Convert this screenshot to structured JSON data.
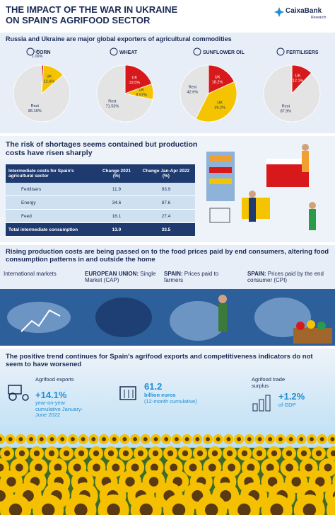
{
  "header": {
    "title": "THE IMPACT OF THE WAR IN UKRAINE",
    "title2": "ON SPAIN'S AGRIFOOD SECTOR",
    "brand": "CaixaBank",
    "brand_sub": "Research"
  },
  "exporters": {
    "heading": "Russia and Ukraine are major global exporters of agricultural commodities",
    "pies": [
      {
        "label": "CORN",
        "slices": [
          {
            "name": "UK",
            "value": 1.09,
            "value_label": "1.09%",
            "color": "#d7191c"
          },
          {
            "name": "UK",
            "value": 12.6,
            "value_label": "12.6%",
            "color": "#f5c400"
          },
          {
            "name": "Rest",
            "value": 86.16,
            "value_label": "86.16%",
            "color": "#e4e4e4"
          }
        ]
      },
      {
        "label": "WHEAT",
        "slices": [
          {
            "name": "UK",
            "value": 19.5,
            "value_label": "19.5%",
            "color": "#d7191c"
          },
          {
            "name": "UK",
            "value": 8.97,
            "value_label": "8.97%",
            "color": "#f5c400"
          },
          {
            "name": "Rest",
            "value": 71.53,
            "value_label": "71.53%",
            "color": "#e4e4e4"
          }
        ]
      },
      {
        "label": "SUNFLOWER OIL",
        "slices": [
          {
            "name": "UK",
            "value": 18.2,
            "value_label": "18.2%",
            "color": "#d7191c"
          },
          {
            "name": "UK",
            "value": 39.2,
            "value_label": "39.2%",
            "color": "#f5c400"
          },
          {
            "name": "Rest",
            "value": 42.6,
            "value_label": "42.6%",
            "color": "#e4e4e4"
          }
        ]
      },
      {
        "label": "FERTILISERS",
        "slices": [
          {
            "name": "UK",
            "value": 12.1,
            "value_label": "12.1%",
            "color": "#d7191c"
          },
          {
            "name": "Rest",
            "value": 87.9,
            "value_label": "87.9%",
            "color": "#e4e4e4"
          }
        ]
      }
    ]
  },
  "costs": {
    "heading": "The risk of shortages seems contained but production costs have risen sharply",
    "table": {
      "header": [
        "Intermediate costs for Spain's agricultural sector",
        "Change 2021 (%)",
        "Change Jan-Apr 2022 (%)"
      ],
      "rows": [
        [
          "Fertilisers",
          "11.9",
          "93.9"
        ],
        [
          "Energy",
          "34.6",
          "87.6"
        ],
        [
          "Feed",
          "16.1",
          "27.4"
        ]
      ],
      "total": [
        "Total intermediate consumption",
        "13.0",
        "33.5"
      ]
    }
  },
  "prices": {
    "heading": "Rising production costs are being passed on to the food prices paid by end consumers, altering food consumption patterns in and outside the home",
    "stage1": "International markets",
    "stages": [
      {
        "bold": "EUROPEAN UNION:",
        "text": "Single Market (CAP)"
      },
      {
        "bold": "SPAIN:",
        "text": "Prices paid to farmers"
      },
      {
        "bold": "SPAIN:",
        "text": "Prices paid by the end consumer (CPI)"
      }
    ]
  },
  "exports": {
    "heading": "The positive trend continues for Spain's agrifood exports and competitiveness indicators do not seem to have worsened",
    "s1": {
      "label": "Agrifood exports",
      "value": "+14.1%",
      "detail": "year-on-year cumulative January-June 2022"
    },
    "s2": {
      "value": "61.2",
      "unit": "billion euros",
      "detail": "(12-month cumulative)"
    },
    "s3": {
      "label": "Agrifood trade surplus",
      "value": "+1.2%",
      "unit": "of GDP"
    }
  }
}
